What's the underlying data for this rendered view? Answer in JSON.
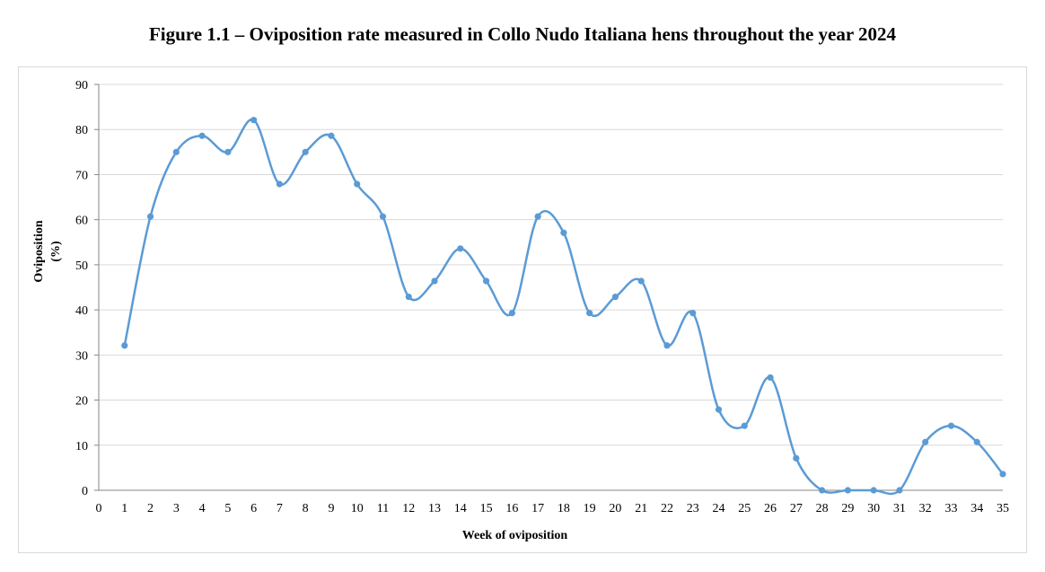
{
  "title": "Figure 1.1 – Oviposition rate measured in Collo Nudo Italiana hens throughout the year 2024",
  "chart_data": {
    "type": "line",
    "xlabel": "Week of oviposition",
    "ylabel_line1": "Oviposition",
    "ylabel_line2": "(%)",
    "xlim": [
      0,
      35
    ],
    "ylim": [
      0,
      90
    ],
    "x_ticks": [
      0,
      1,
      2,
      3,
      4,
      5,
      6,
      7,
      8,
      9,
      10,
      11,
      12,
      13,
      14,
      15,
      16,
      17,
      18,
      19,
      20,
      21,
      22,
      23,
      24,
      25,
      26,
      27,
      28,
      29,
      30,
      31,
      32,
      33,
      34,
      35
    ],
    "y_ticks": [
      0,
      10,
      20,
      30,
      40,
      50,
      60,
      70,
      80,
      90
    ],
    "grid": true,
    "smoothed": true,
    "series_color": "#5b9bd5",
    "x": [
      1,
      2,
      3,
      4,
      5,
      6,
      7,
      8,
      9,
      10,
      11,
      12,
      13,
      14,
      15,
      16,
      17,
      18,
      19,
      20,
      21,
      22,
      23,
      24,
      25,
      26,
      27,
      28,
      29,
      30,
      31,
      32,
      33,
      34,
      35
    ],
    "y": [
      32.1,
      60.7,
      75,
      78.6,
      75,
      82.1,
      67.9,
      75,
      78.6,
      67.9,
      60.7,
      42.9,
      46.4,
      53.6,
      46.4,
      39.3,
      60.7,
      57.1,
      39.3,
      42.9,
      46.4,
      32.1,
      39.3,
      17.9,
      14.3,
      25,
      7.1,
      0,
      0,
      0,
      0,
      10.7,
      14.3,
      10.7,
      3.6
    ]
  }
}
